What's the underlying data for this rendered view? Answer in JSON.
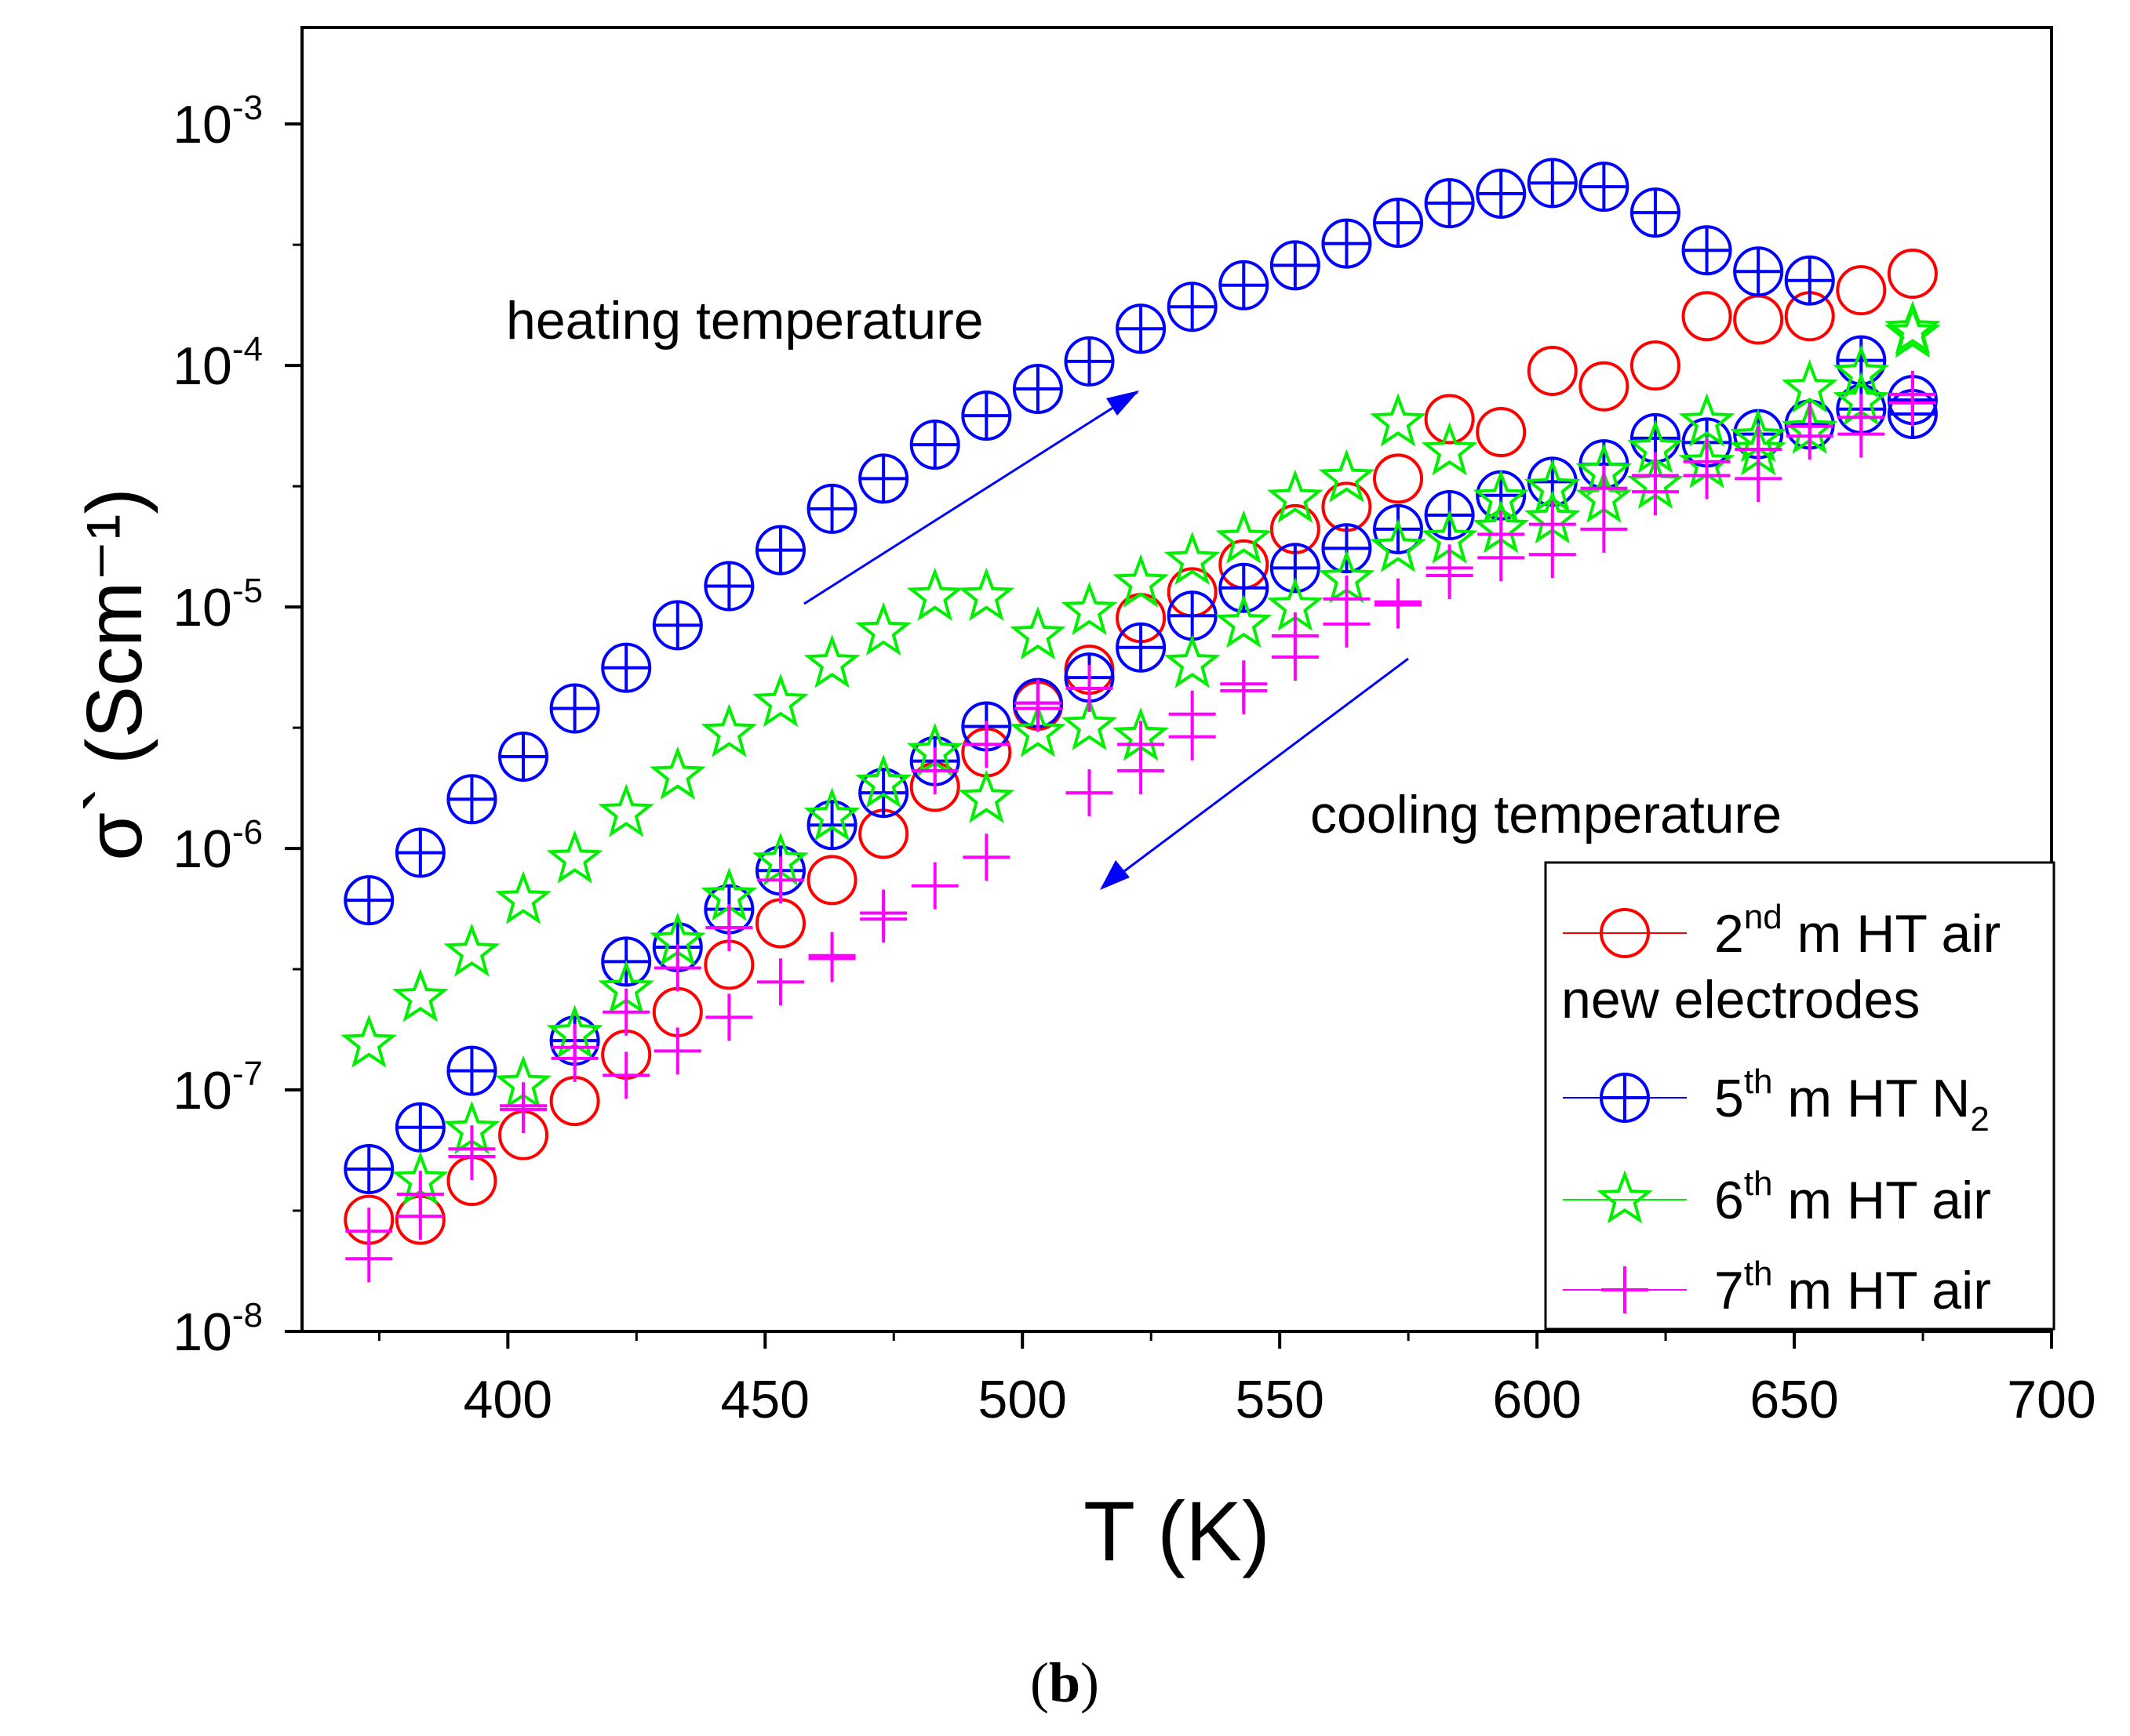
{
  "chart_data": {
    "type": "scatter",
    "title": "",
    "xlabel": "T (K)",
    "ylabel": "σ` (Scm⁻¹)",
    "xlim": [
      360,
      700
    ],
    "ylim_log10": [
      -8,
      -2.6
    ],
    "yscale": "log",
    "grid": false,
    "x_ticks": [
      {
        "value": 400,
        "label": "400"
      },
      {
        "value": 450,
        "label": "450"
      },
      {
        "value": 500,
        "label": "500"
      },
      {
        "value": 550,
        "label": "550"
      },
      {
        "value": 600,
        "label": "600"
      },
      {
        "value": 650,
        "label": "650"
      },
      {
        "value": 700,
        "label": "700"
      }
    ],
    "y_ticks": [
      {
        "exp": -8,
        "base": "10",
        "sup": "-8"
      },
      {
        "exp": -7,
        "base": "10",
        "sup": "-7"
      },
      {
        "exp": -6,
        "base": "10",
        "sup": "-6"
      },
      {
        "exp": -5,
        "base": "10",
        "sup": "-5"
      },
      {
        "exp": -4,
        "base": "10",
        "sup": "-4"
      },
      {
        "exp": -3,
        "base": "10",
        "sup": "-3"
      }
    ],
    "legend_position": "bottom-right",
    "legend_note": "new electrodes",
    "annotations": [
      {
        "text": "heating temperature",
        "arrow": "up"
      },
      {
        "text": "cooling temperature",
        "arrow": "down"
      }
    ],
    "series": [
      {
        "name": "2nd m HT air",
        "legend_main": "2",
        "legend_sup": "nd",
        "legend_rest": " m HT air",
        "legend_sub": "",
        "marker": "circle",
        "color": "#ff0000",
        "points": [
          [
            373,
            2.9e-08
          ],
          [
            383,
            2.9e-08
          ],
          [
            393,
            4.2e-08
          ],
          [
            403,
            6.5e-08
          ],
          [
            413,
            9e-08
          ],
          [
            423,
            1.4e-07
          ],
          [
            433,
            2.1e-07
          ],
          [
            443,
            3.3e-07
          ],
          [
            453,
            4.9e-07
          ],
          [
            463,
            7.4e-07
          ],
          [
            473,
            1.15e-06
          ],
          [
            483,
            1.8e-06
          ],
          [
            493,
            2.5e-06
          ],
          [
            503,
            3.9e-06
          ],
          [
            513,
            5.5e-06
          ],
          [
            523,
            9e-06
          ],
          [
            533,
            1.15e-05
          ],
          [
            543,
            1.5e-05
          ],
          [
            553,
            2.1e-05
          ],
          [
            563,
            2.6e-05
          ],
          [
            573,
            3.4e-05
          ],
          [
            583,
            6e-05
          ],
          [
            593,
            5.3e-05
          ],
          [
            603,
            9.5e-05
          ],
          [
            613,
            8.2e-05
          ],
          [
            623,
            0.0001
          ],
          [
            633,
            0.00016
          ],
          [
            643,
            0.000155
          ],
          [
            653,
            0.00016
          ],
          [
            663,
            0.000205
          ],
          [
            673,
            0.00024
          ]
        ]
      },
      {
        "name": "5th m HT N2",
        "legend_main": "5",
        "legend_sup": "th",
        "legend_rest": " m HT N",
        "legend_sub": "2",
        "marker": "circle-plus",
        "color": "#0000ff",
        "points": [
          [
            373,
            6.1e-07
          ],
          [
            383,
            9.6e-07
          ],
          [
            393,
            1.6e-06
          ],
          [
            403,
            2.4e-06
          ],
          [
            413,
            3.8e-06
          ],
          [
            423,
            5.6e-06
          ],
          [
            433,
            8.4e-06
          ],
          [
            443,
            1.22e-05
          ],
          [
            453,
            1.72e-05
          ],
          [
            463,
            2.55e-05
          ],
          [
            473,
            3.4e-05
          ],
          [
            483,
            4.7e-05
          ],
          [
            493,
            6.2e-05
          ],
          [
            503,
            8e-05
          ],
          [
            513,
            0.000104
          ],
          [
            523,
            0.000142
          ],
          [
            533,
            0.000175
          ],
          [
            543,
            0.000215
          ],
          [
            553,
            0.00026
          ],
          [
            563,
            0.00032
          ],
          [
            573,
            0.00039
          ],
          [
            583,
            0.00047
          ],
          [
            593,
            0.000515
          ],
          [
            603,
            0.00057
          ],
          [
            613,
            0.00055
          ],
          [
            623,
            0.00043
          ],
          [
            633,
            0.0003
          ],
          [
            643,
            0.000245
          ],
          [
            653,
            0.000225
          ],
          [
            663,
            0.000105
          ],
          [
            673,
            7.2e-05
          ],
          [
            373,
            4.7e-08
          ],
          [
            383,
            7e-08
          ],
          [
            393,
            1.2e-07
          ],
          [
            413,
            1.6e-07
          ],
          [
            423,
            3.4e-07
          ],
          [
            433,
            3.9e-07
          ],
          [
            443,
            5.6e-07
          ],
          [
            453,
            8.1e-07
          ],
          [
            463,
            1.25e-06
          ],
          [
            473,
            1.7e-06
          ],
          [
            483,
            2.3e-06
          ],
          [
            493,
            3.2e-06
          ],
          [
            503,
            4e-06
          ],
          [
            513,
            5.1e-06
          ],
          [
            523,
            6.8e-06
          ],
          [
            533,
            9.2e-06
          ],
          [
            543,
            1.2e-05
          ],
          [
            553,
            1.45e-05
          ],
          [
            563,
            1.75e-05
          ],
          [
            573,
            2.1e-05
          ],
          [
            583,
            2.4e-05
          ],
          [
            593,
            2.9e-05
          ],
          [
            603,
            3.3e-05
          ],
          [
            613,
            3.9e-05
          ],
          [
            623,
            5e-05
          ],
          [
            633,
            4.8e-05
          ],
          [
            643,
            5.2e-05
          ],
          [
            653,
            5.7e-05
          ],
          [
            663,
            6.6e-05
          ],
          [
            673,
            6.3e-05
          ]
        ]
      },
      {
        "name": "6th m HT air",
        "legend_main": "6",
        "legend_sup": "th",
        "legend_rest": " m HT air",
        "legend_sub": "",
        "marker": "star",
        "color": "#00ee00",
        "points": [
          [
            373,
            1.55e-07
          ],
          [
            383,
            2.4e-07
          ],
          [
            393,
            3.7e-07
          ],
          [
            403,
            6.1e-07
          ],
          [
            413,
            9e-07
          ],
          [
            423,
            1.4e-06
          ],
          [
            433,
            2e-06
          ],
          [
            443,
            3e-06
          ],
          [
            453,
            4e-06
          ],
          [
            463,
            5.8e-06
          ],
          [
            473,
            7.9e-06
          ],
          [
            483,
            1.1e-05
          ],
          [
            493,
            1.1e-05
          ],
          [
            503,
            7.6e-06
          ],
          [
            513,
            9.6e-06
          ],
          [
            523,
            1.25e-05
          ],
          [
            533,
            1.55e-05
          ],
          [
            543,
            1.9e-05
          ],
          [
            553,
            2.8e-05
          ],
          [
            563,
            3.4e-05
          ],
          [
            573,
            5.8e-05
          ],
          [
            583,
            4.4e-05
          ],
          [
            593,
            2.8e-05
          ],
          [
            603,
            3.1e-05
          ],
          [
            613,
            3.6e-05
          ],
          [
            623,
            4.5e-05
          ],
          [
            633,
            5.8e-05
          ],
          [
            643,
            5e-05
          ],
          [
            653,
            8e-05
          ],
          [
            663,
            9.2e-05
          ],
          [
            673,
            0.00014
          ],
          [
            383,
            4.2e-08
          ],
          [
            393,
            6.8e-08
          ],
          [
            403,
            1.05e-07
          ],
          [
            413,
            1.7e-07
          ],
          [
            423,
            2.6e-07
          ],
          [
            433,
            4.1e-07
          ],
          [
            443,
            6.3e-07
          ],
          [
            453,
            8.8e-07
          ],
          [
            463,
            1.35e-06
          ],
          [
            473,
            1.85e-06
          ],
          [
            483,
            2.5e-06
          ],
          [
            493,
            1.6e-06
          ],
          [
            503,
            3e-06
          ],
          [
            513,
            3.2e-06
          ],
          [
            523,
            2.9e-06
          ],
          [
            533,
            5.8e-06
          ],
          [
            543,
            8.5e-06
          ],
          [
            553,
            1e-05
          ],
          [
            563,
            1.3e-05
          ],
          [
            573,
            1.75e-05
          ],
          [
            583,
            1.9e-05
          ],
          [
            593,
            2.1e-05
          ],
          [
            603,
            2.3e-05
          ],
          [
            613,
            2.8e-05
          ],
          [
            623,
            3.2e-05
          ],
          [
            633,
            3.9e-05
          ],
          [
            643,
            4.4e-05
          ],
          [
            653,
            5.4e-05
          ],
          [
            663,
            7.1e-05
          ],
          [
            673,
            0.000135
          ]
        ]
      },
      {
        "name": "7th m HT air",
        "legend_main": "7",
        "legend_sup": "th",
        "legend_rest": " m HT air",
        "legend_sub": "",
        "marker": "plus",
        "color": "#ff00ff",
        "points": [
          [
            373,
            2e-08
          ],
          [
            383,
            3.7e-08
          ],
          [
            393,
            5.7e-08
          ],
          [
            403,
            8.6e-08
          ],
          [
            413,
            1.35e-07
          ],
          [
            423,
            1.15e-07
          ],
          [
            433,
            1.45e-07
          ],
          [
            443,
            2e-07
          ],
          [
            453,
            2.8e-07
          ],
          [
            463,
            3.5e-07
          ],
          [
            473,
            5.1e-07
          ],
          [
            483,
            7e-07
          ],
          [
            493,
            9.2e-07
          ],
          [
            503,
            4e-06
          ],
          [
            513,
            1.7e-06
          ],
          [
            523,
            2.1e-06
          ],
          [
            533,
            2.9e-06
          ],
          [
            543,
            4.5e-06
          ],
          [
            553,
            6.2e-06
          ],
          [
            563,
            8.5e-06
          ],
          [
            573,
            1.02e-05
          ],
          [
            583,
            1.35e-05
          ],
          [
            593,
            1.6e-05
          ],
          [
            603,
            1.65e-05
          ],
          [
            613,
            2.1e-05
          ],
          [
            623,
            3e-05
          ],
          [
            633,
            3.5e-05
          ],
          [
            643,
            3.4e-05
          ],
          [
            653,
            5.1e-05
          ],
          [
            663,
            5.2e-05
          ],
          [
            673,
            7.6e-05
          ],
          [
            373,
            2.6e-08
          ],
          [
            383,
            3e-08
          ],
          [
            393,
            5.3e-08
          ],
          [
            403,
            8.3e-08
          ],
          [
            413,
            1.5e-07
          ],
          [
            423,
            2.1e-07
          ],
          [
            433,
            3.2e-07
          ],
          [
            443,
            4.7e-07
          ],
          [
            453,
            7.4e-07
          ],
          [
            463,
            3.6e-07
          ],
          [
            473,
            5.4e-07
          ],
          [
            483,
            2.1e-06
          ],
          [
            493,
            2.7e-06
          ],
          [
            503,
            3.8e-06
          ],
          [
            513,
            4.6e-06
          ],
          [
            523,
            2.7e-06
          ],
          [
            533,
            3.6e-06
          ],
          [
            543,
            4.8e-06
          ],
          [
            553,
            7.6e-06
          ],
          [
            563,
            1.08e-05
          ],
          [
            573,
            1.05e-05
          ],
          [
            583,
            1.45e-05
          ],
          [
            593,
            2e-05
          ],
          [
            603,
            2.2e-05
          ],
          [
            613,
            3.1e-05
          ],
          [
            623,
            3.5e-05
          ],
          [
            633,
            4e-05
          ],
          [
            643,
            4.5e-05
          ],
          [
            653,
            5.6e-05
          ],
          [
            663,
            6.1e-05
          ],
          [
            673,
            7e-05
          ]
        ]
      }
    ]
  },
  "caption": {
    "open": "(",
    "bold": "b",
    "close": ")"
  }
}
